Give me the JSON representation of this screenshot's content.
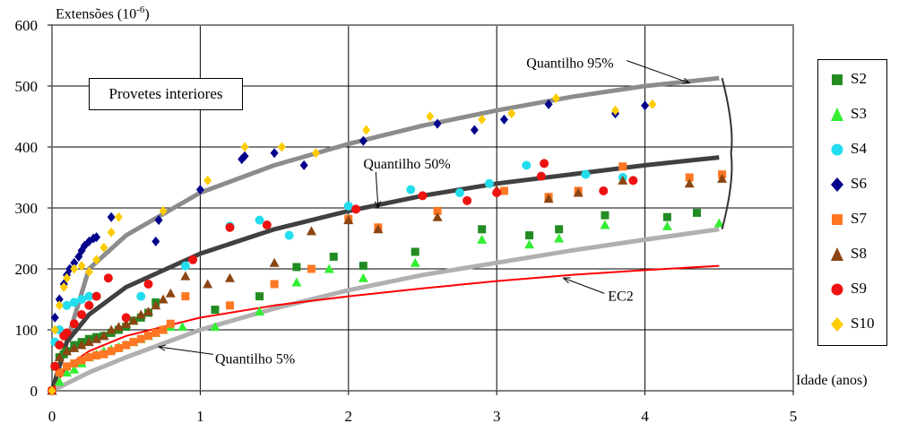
{
  "chart_data": {
    "type": "scatter",
    "ylabel": "Extensões (10",
    "ylabel_exp": "-6",
    "ylabel_end": ")",
    "xlabel": "Idade (anos)",
    "box_label": "Provetes interiores",
    "xlim": [
      0,
      5
    ],
    "ylim": [
      0,
      600
    ],
    "x_ticks": [
      "0",
      "1",
      "2",
      "3",
      "4",
      "5"
    ],
    "y_ticks": [
      "0",
      "100",
      "200",
      "300",
      "400",
      "500",
      "600"
    ],
    "grid": true,
    "legend_position": "right",
    "curves": [
      {
        "name": "Quantilho 95%",
        "color": "#8c8c8c",
        "x": [
          0,
          0.25,
          0.5,
          1,
          1.5,
          2,
          2.5,
          3,
          3.5,
          4,
          4.5
        ],
        "y": [
          0,
          200,
          255,
          325,
          370,
          405,
          435,
          460,
          482,
          500,
          513
        ]
      },
      {
        "name": "Quantilho 50%",
        "color": "#404040",
        "x": [
          0,
          0.1,
          0.25,
          0.5,
          1,
          1.5,
          2,
          2.5,
          3,
          3.5,
          4,
          4.5
        ],
        "y": [
          0,
          80,
          125,
          170,
          225,
          265,
          295,
          320,
          340,
          355,
          370,
          383
        ]
      },
      {
        "name": "Quantilho 5%",
        "color": "#b0b0b0",
        "x": [
          0,
          0.25,
          0.5,
          1,
          1.5,
          2,
          2.5,
          3,
          3.5,
          4,
          4.5
        ],
        "y": [
          0,
          30,
          55,
          100,
          135,
          165,
          190,
          210,
          230,
          248,
          265
        ]
      },
      {
        "name": "EC2",
        "color": "#ff0000",
        "x": [
          0,
          0.1,
          0.25,
          0.5,
          1,
          1.5,
          2,
          2.5,
          3,
          3.5,
          4,
          4.5
        ],
        "y": [
          0,
          40,
          65,
          90,
          120,
          140,
          155,
          168,
          180,
          190,
          198,
          205
        ]
      }
    ],
    "annotations": [
      {
        "text": "Quantilho 95%",
        "x": 3.2,
        "y": 530,
        "arrow_to": [
          4.3,
          505
        ]
      },
      {
        "text": "Quantilho 50%",
        "x": 2.1,
        "y": 365,
        "arrow_to": [
          2.2,
          300
        ]
      },
      {
        "text": "Quantilho 5%",
        "x": 1.1,
        "y": 45,
        "arrow_to": [
          0.72,
          72
        ]
      },
      {
        "text": "EC2",
        "x": 3.75,
        "y": 148,
        "arrow_to": [
          3.45,
          185
        ]
      }
    ],
    "series": [
      {
        "name": "S2",
        "color": "#228B22",
        "marker": "square",
        "x": [
          0,
          0.02,
          0.05,
          0.08,
          0.1,
          0.15,
          0.2,
          0.25,
          0.3,
          0.35,
          0.4,
          0.45,
          0.5,
          0.55,
          0.6,
          0.65,
          0.7,
          1.1,
          1.4,
          1.65,
          1.9,
          2.1,
          2.45,
          2.9,
          3.22,
          3.42,
          3.73,
          4.15,
          4.35
        ],
        "y": [
          0,
          40,
          55,
          60,
          65,
          75,
          80,
          85,
          88,
          90,
          95,
          100,
          105,
          115,
          120,
          128,
          145,
          133,
          155,
          203,
          220,
          205,
          228,
          265,
          255,
          265,
          288,
          285,
          292
        ]
      },
      {
        "name": "S3",
        "color": "#33ee33",
        "marker": "triangle",
        "x": [
          0,
          0.05,
          0.1,
          0.15,
          0.2,
          0.25,
          0.3,
          0.35,
          0.4,
          0.45,
          0.5,
          0.55,
          0.6,
          0.65,
          0.7,
          0.75,
          0.8,
          0.88,
          1.1,
          1.4,
          1.65,
          1.87,
          2.1,
          2.45,
          2.9,
          3.22,
          3.42,
          3.73,
          4.15,
          4.5
        ],
        "y": [
          0,
          15,
          30,
          35,
          45,
          55,
          60,
          65,
          68,
          72,
          75,
          80,
          85,
          90,
          95,
          100,
          105,
          105,
          105,
          130,
          178,
          200,
          185,
          210,
          248,
          240,
          250,
          272,
          270,
          275
        ]
      },
      {
        "name": "S4",
        "color": "#22ddee",
        "marker": "circle",
        "x": [
          0,
          0.02,
          0.05,
          0.1,
          0.15,
          0.2,
          0.25,
          0.3,
          0.6,
          0.9,
          1.2,
          1.4,
          1.6,
          2.0,
          2.42,
          2.75,
          2.95,
          3.2,
          3.6,
          3.85
        ],
        "y": [
          0,
          80,
          100,
          140,
          145,
          150,
          155,
          155,
          155,
          205,
          270,
          280,
          255,
          303,
          330,
          325,
          340,
          370,
          355,
          350
        ]
      },
      {
        "name": "S6",
        "color": "#00008B",
        "marker": "diamond",
        "x": [
          0,
          0.02,
          0.05,
          0.08,
          0.1,
          0.12,
          0.15,
          0.18,
          0.2,
          0.22,
          0.25,
          0.28,
          0.3,
          0.4,
          0.7,
          0.72,
          1.0,
          1.28,
          1.3,
          1.5,
          1.7,
          2.1,
          2.6,
          2.85,
          3.05,
          3.35,
          3.8,
          4.0
        ],
        "y": [
          0,
          120,
          150,
          175,
          190,
          200,
          210,
          220,
          230,
          238,
          245,
          250,
          252,
          285,
          245,
          280,
          330,
          380,
          385,
          390,
          370,
          410,
          438,
          428,
          445,
          470,
          455,
          468
        ]
      },
      {
        "name": "S7",
        "color": "#ff7722",
        "marker": "square",
        "x": [
          0,
          0.05,
          0.1,
          0.15,
          0.2,
          0.25,
          0.3,
          0.35,
          0.4,
          0.45,
          0.5,
          0.55,
          0.6,
          0.65,
          0.7,
          0.75,
          0.8,
          0.9,
          1.2,
          1.5,
          1.75,
          2.0,
          2.2,
          2.6,
          3.05,
          3.35,
          3.55,
          3.85,
          4.3,
          4.52
        ],
        "y": [
          0,
          30,
          40,
          45,
          50,
          55,
          58,
          60,
          65,
          70,
          75,
          80,
          85,
          90,
          95,
          100,
          110,
          155,
          140,
          175,
          200,
          282,
          268,
          295,
          328,
          318,
          328,
          368,
          350,
          355
        ]
      },
      {
        "name": "S8",
        "color": "#8B4513",
        "marker": "triangle",
        "x": [
          0,
          0.05,
          0.1,
          0.15,
          0.2,
          0.25,
          0.3,
          0.35,
          0.4,
          0.45,
          0.5,
          0.55,
          0.6,
          0.65,
          0.7,
          0.75,
          0.8,
          0.9,
          1.05,
          1.2,
          1.5,
          1.75,
          2.0,
          2.2,
          2.6,
          3.0,
          3.35,
          3.55,
          3.85,
          4.3,
          4.52
        ],
        "y": [
          0,
          55,
          65,
          70,
          75,
          80,
          85,
          90,
          100,
          105,
          110,
          115,
          125,
          130,
          140,
          150,
          160,
          188,
          175,
          185,
          210,
          262,
          280,
          265,
          285,
          330,
          315,
          325,
          345,
          340,
          348
        ]
      },
      {
        "name": "S9",
        "color": "#ee1111",
        "marker": "circle",
        "x": [
          0,
          0.02,
          0.05,
          0.08,
          0.1,
          0.15,
          0.2,
          0.25,
          0.3,
          0.38,
          0.5,
          0.65,
          0.95,
          1.2,
          1.45,
          2.05,
          2.5,
          2.8,
          3.0,
          3.3,
          3.32,
          3.72,
          3.92
        ],
        "y": [
          0,
          40,
          75,
          90,
          95,
          110,
          125,
          140,
          155,
          185,
          120,
          175,
          215,
          268,
          272,
          298,
          320,
          312,
          325,
          352,
          373,
          328,
          345
        ]
      },
      {
        "name": "S10",
        "color": "#ffcc00",
        "marker": "diamond",
        "x": [
          0,
          0.02,
          0.05,
          0.08,
          0.1,
          0.15,
          0.2,
          0.25,
          0.3,
          0.35,
          0.4,
          0.45,
          0.75,
          1.05,
          1.3,
          1.55,
          1.78,
          2.12,
          2.55,
          2.9,
          3.1,
          3.4,
          3.8,
          4.05
        ],
        "y": [
          0,
          100,
          140,
          170,
          185,
          200,
          205,
          195,
          215,
          235,
          260,
          285,
          295,
          345,
          400,
          400,
          390,
          428,
          450,
          445,
          455,
          480,
          460,
          470
        ]
      }
    ]
  }
}
